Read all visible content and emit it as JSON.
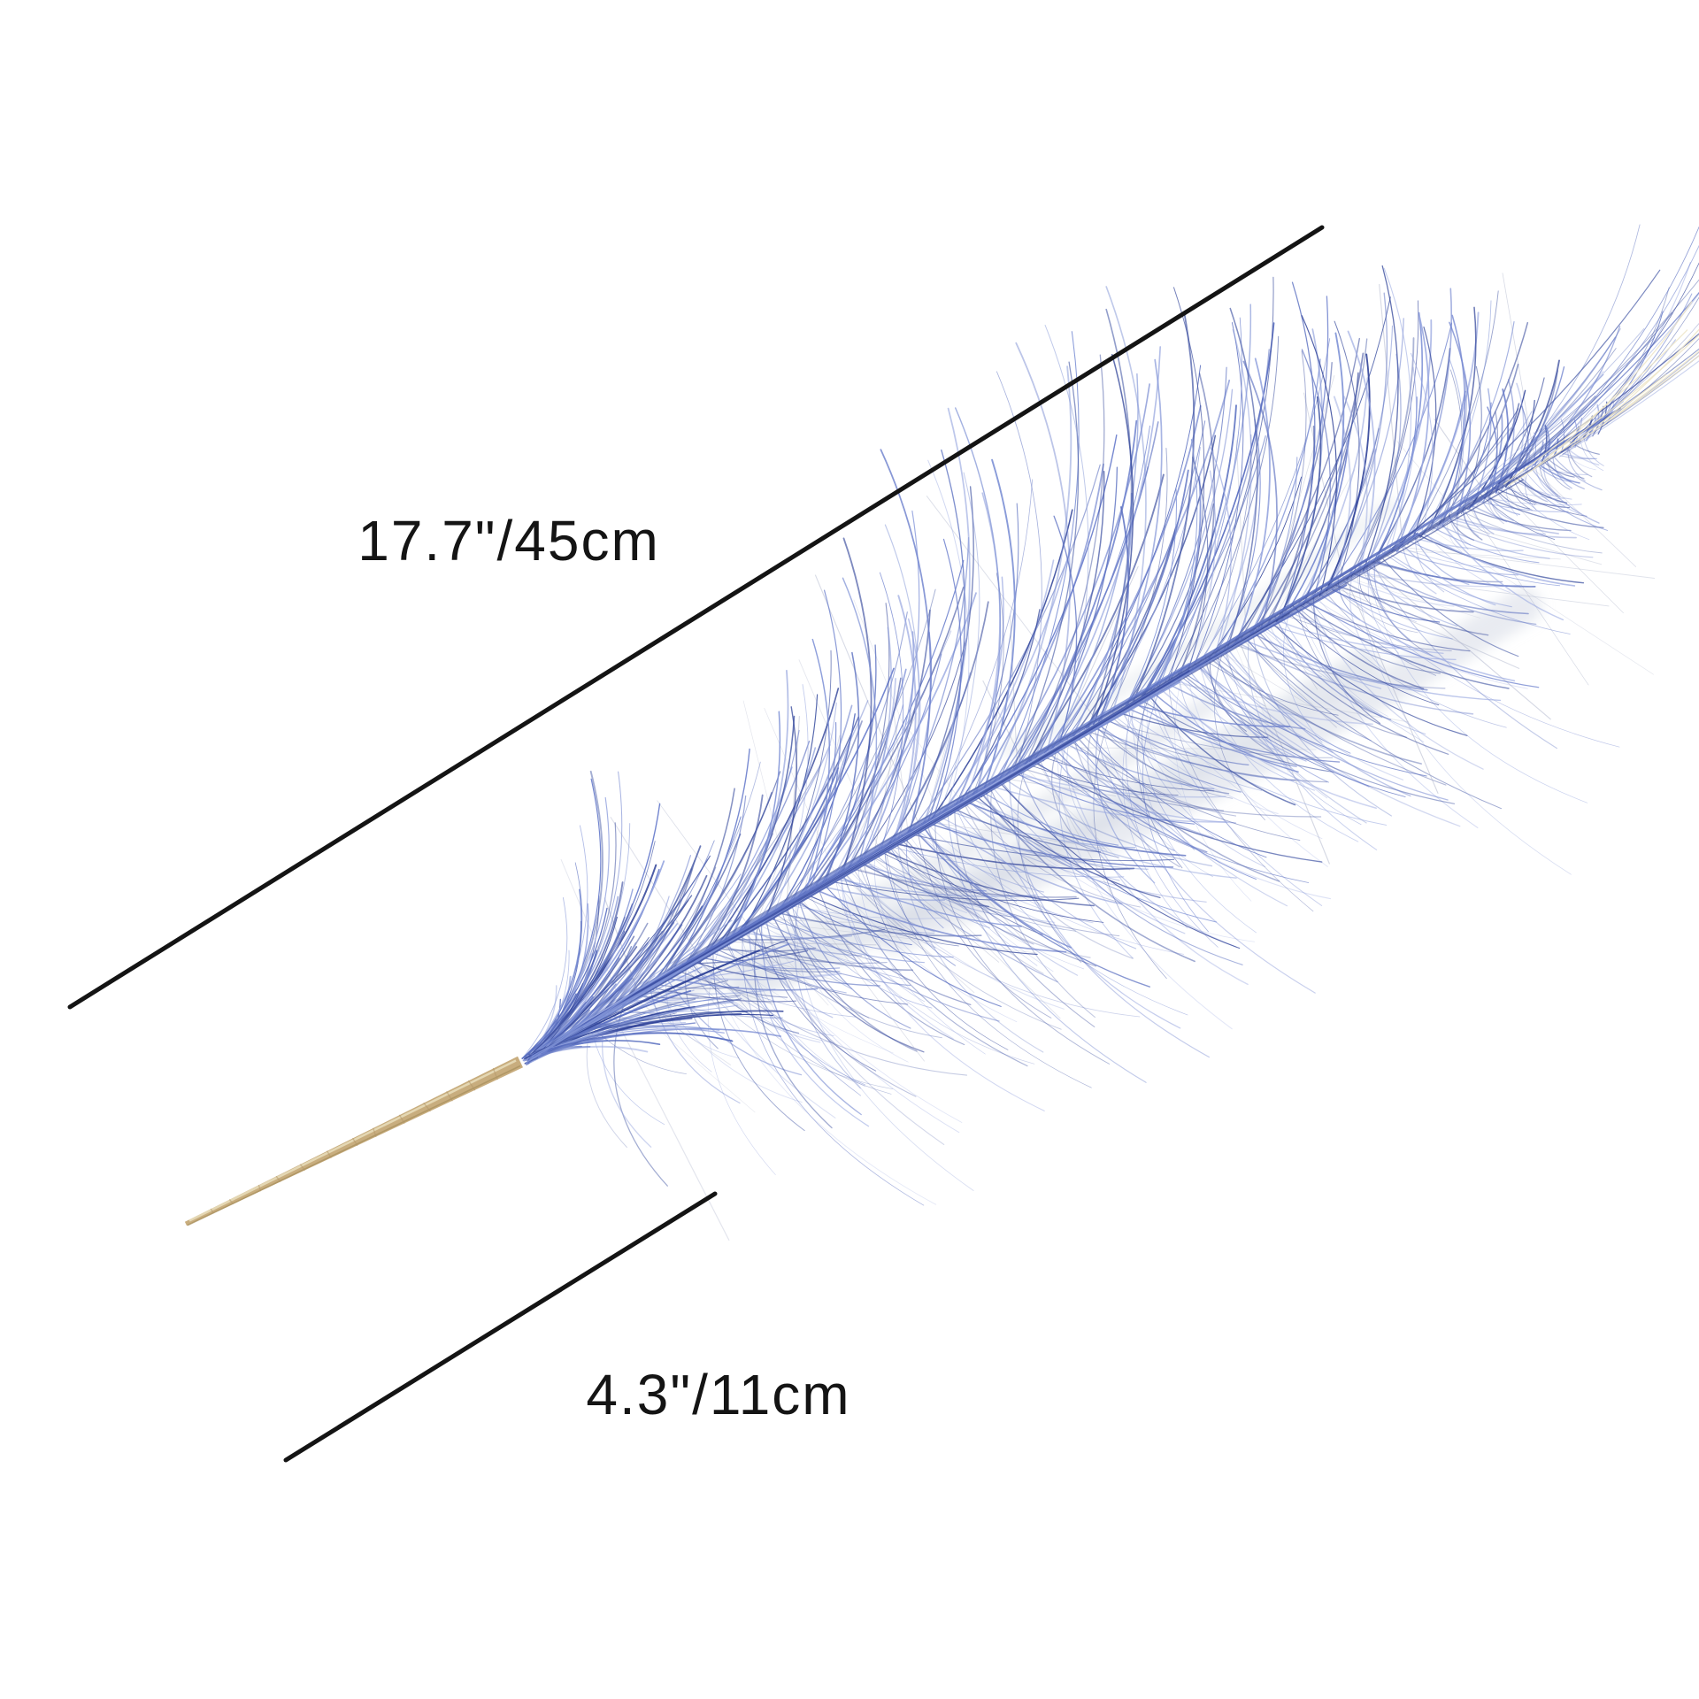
{
  "diagram": {
    "title": "feather plume dimension diagram",
    "labels": {
      "feather_length": "17.7\"/45cm",
      "stem_length": "4.3\"/11cm"
    }
  },
  "colors": {
    "background": "#ffffff",
    "dimension_line": "#141414",
    "label_text": "#141414",
    "feather_blue_palette": [
      "#34479b",
      "#4a5da8",
      "#5a6fc0",
      "#6c80cd",
      "#8093d6",
      "#98a7e0"
    ],
    "feather_dark_blue": "#2f4293",
    "feather_gray": "#a7aec6",
    "feather_web_gray": "#ced3df",
    "feather_cream": "#ede5c8",
    "stem_tan": "#c8ad7e",
    "stem_highlight": "#e7dbb9",
    "stem_shadow": "#a78e5d",
    "stem_tick": "#b2986a"
  }
}
